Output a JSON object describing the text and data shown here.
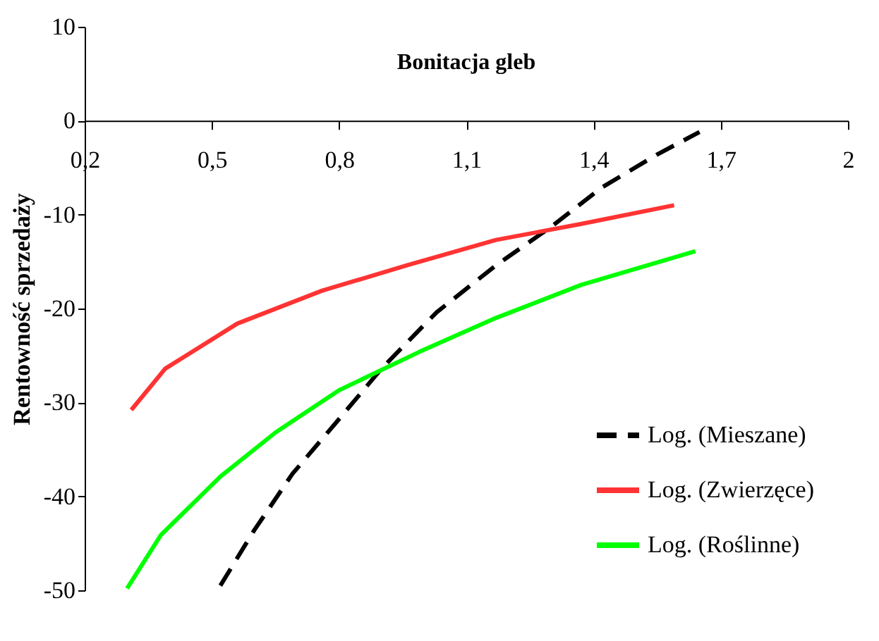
{
  "chart_data": {
    "type": "line",
    "title": "Bonitacja gleb",
    "ylabel": "Rentowność sprzedaży",
    "xlim": [
      0.2,
      2
    ],
    "xticks": [
      {
        "value": 0.2,
        "label": "0,2"
      },
      {
        "value": 0.5,
        "label": "0,5"
      },
      {
        "value": 0.8,
        "label": "0,8"
      },
      {
        "value": 1.1,
        "label": "1,1"
      },
      {
        "value": 1.4,
        "label": "1,4"
      },
      {
        "value": 1.7,
        "label": "1,7"
      },
      2
    ],
    "ylim": [
      -50,
      10
    ],
    "yticks": [
      -50,
      -40,
      -30,
      -20,
      -10,
      0,
      10
    ],
    "grid": false,
    "legend": "bottom right",
    "series": [
      {
        "name": "Log. (Mieszane)",
        "color": "#000000",
        "line_style": "dashed",
        "x": [
          0.52,
          0.6,
          0.69,
          0.79,
          0.9,
          1.03,
          1.17,
          1.3,
          1.42,
          1.55,
          1.65
        ],
        "values": [
          -49.5,
          -43.6,
          -37.6,
          -32.3,
          -26.4,
          -20.4,
          -15.4,
          -11.3,
          -7.1,
          -3.6,
          -1.2
        ]
      },
      {
        "name": "Log. (Zwierzęce)",
        "color": "#ff3333",
        "line_style": "solid",
        "x": [
          0.31,
          0.39,
          0.56,
          0.76,
          0.96,
          1.17,
          1.37,
          1.59
        ],
        "values": [
          -30.8,
          -26.4,
          -21.6,
          -18.1,
          -15.4,
          -12.7,
          -11.0,
          -9.0
        ]
      },
      {
        "name": "Log. (Roślinne)",
        "color": "#00ff00",
        "line_style": "solid",
        "x": [
          0.3,
          0.38,
          0.52,
          0.65,
          0.8,
          0.99,
          1.17,
          1.37,
          1.64
        ],
        "values": [
          -49.8,
          -44.1,
          -37.9,
          -33.2,
          -28.7,
          -24.6,
          -21.0,
          -17.5,
          -13.9
        ]
      }
    ]
  }
}
